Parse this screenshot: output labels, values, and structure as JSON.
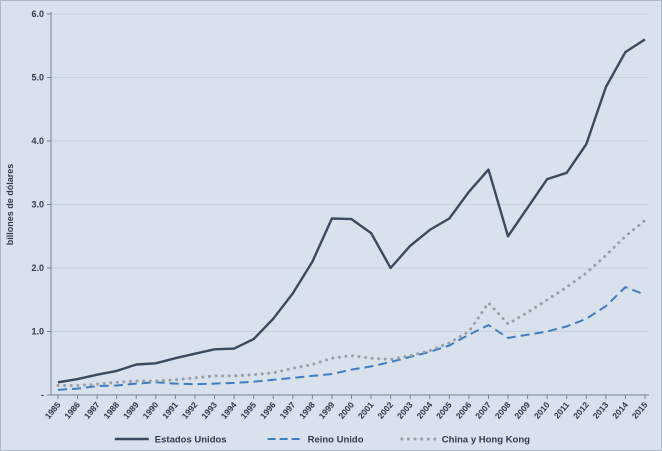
{
  "chart_data": {
    "type": "line",
    "title": "",
    "xlabel": "",
    "ylabel": "billones de dólares",
    "ylim": [
      0,
      6
    ],
    "ytick_step": 1,
    "ytick_labels": [
      "-",
      "1.0",
      "2.0",
      "3.0",
      "4.0",
      "5.0",
      "6.0"
    ],
    "grid": true,
    "legend_position": "bottom",
    "background_color": "#d9e1ec",
    "gridline_color": "#c6d0df",
    "axis_color": "#768192",
    "label_color": "#333a45",
    "x": [
      "1985",
      "1986",
      "1987",
      "1988",
      "1989",
      "1990",
      "1991",
      "1992",
      "1993",
      "1994",
      "1995",
      "1996",
      "1997",
      "1998",
      "1999",
      "2000",
      "2001",
      "2002",
      "2003",
      "2004",
      "2005",
      "2006",
      "2007",
      "2008",
      "2009",
      "2010",
      "2011",
      "2012",
      "2013",
      "2014",
      "2015"
    ],
    "series": [
      {
        "name": "Estados Unidos",
        "style": "solid",
        "color": "#3b4a5d",
        "values": [
          0.2,
          0.25,
          0.32,
          0.38,
          0.48,
          0.5,
          0.58,
          0.65,
          0.72,
          0.73,
          0.88,
          1.2,
          1.6,
          2.1,
          2.78,
          2.77,
          2.55,
          2.0,
          2.35,
          2.6,
          2.78,
          3.2,
          3.55,
          2.5,
          2.95,
          3.4,
          3.5,
          3.95,
          4.85,
          5.4,
          5.6
        ]
      },
      {
        "name": "Reino Unido",
        "style": "dashed",
        "color": "#3f7fc1",
        "values": [
          0.08,
          0.1,
          0.14,
          0.15,
          0.18,
          0.2,
          0.18,
          0.17,
          0.18,
          0.19,
          0.21,
          0.24,
          0.27,
          0.3,
          0.33,
          0.4,
          0.45,
          0.52,
          0.6,
          0.68,
          0.78,
          0.95,
          1.1,
          0.9,
          0.95,
          1.0,
          1.08,
          1.2,
          1.4,
          1.7,
          1.58
        ]
      },
      {
        "name": "China y Hong Kong",
        "style": "dotted",
        "color": "#9aa0a8",
        "values": [
          0.15,
          0.15,
          0.17,
          0.2,
          0.22,
          0.22,
          0.24,
          0.27,
          0.3,
          0.3,
          0.32,
          0.35,
          0.42,
          0.48,
          0.58,
          0.62,
          0.58,
          0.56,
          0.62,
          0.7,
          0.82,
          1.0,
          1.45,
          1.12,
          1.3,
          1.5,
          1.7,
          1.92,
          2.2,
          2.5,
          2.75
        ]
      }
    ]
  }
}
